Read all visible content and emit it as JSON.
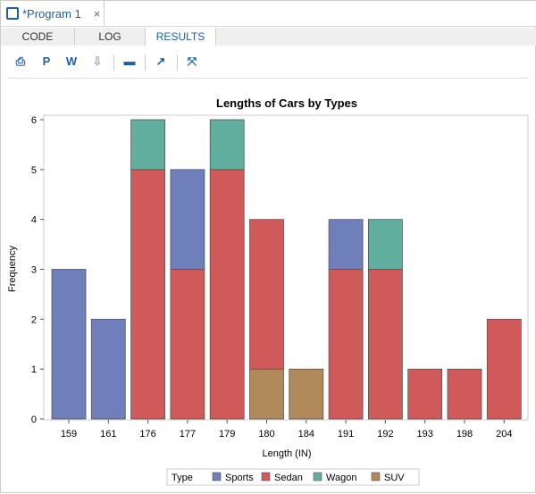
{
  "tab": {
    "title": "*Program 1",
    "close": "×",
    "icon": "program-icon"
  },
  "subtabs": [
    "CODE",
    "LOG",
    "RESULTS"
  ],
  "toolbar": [
    {
      "icon": "html-download-icon",
      "glyph": "⎙"
    },
    {
      "icon": "pdf-download-icon",
      "glyph": "P"
    },
    {
      "icon": "word-download-icon",
      "glyph": "W"
    },
    {
      "icon": "download-icon",
      "glyph": "⇩"
    },
    {
      "icon": "print-icon",
      "glyph": "▬"
    },
    {
      "icon": "expand-icon",
      "glyph": "↗"
    },
    {
      "icon": "collapse-icon",
      "glyph": "⤧"
    }
  ],
  "chart_data": {
    "type": "bar",
    "stacked": true,
    "title": "Lengths of Cars by Types",
    "xlabel": "Length (IN)",
    "ylabel": "Frequency",
    "categories": [
      "159",
      "161",
      "176",
      "177",
      "179",
      "180",
      "184",
      "191",
      "192",
      "193",
      "198",
      "204"
    ],
    "ylim": [
      0,
      6
    ],
    "yticks": [
      "0",
      "1",
      "2",
      "3",
      "4",
      "5",
      "6"
    ],
    "legend_title": "Type",
    "legend_position": "bottom",
    "series": [
      {
        "name": "Sports",
        "color": "#6f7fbb",
        "values": [
          3,
          2,
          0,
          2,
          0,
          0,
          0,
          1,
          0,
          0,
          0,
          0
        ]
      },
      {
        "name": "Sedan",
        "color": "#d05a5a",
        "values": [
          0,
          0,
          5,
          3,
          5,
          3,
          0,
          3,
          3,
          1,
          1,
          2
        ]
      },
      {
        "name": "Wagon",
        "color": "#5fae9e",
        "values": [
          0,
          0,
          1,
          0,
          1,
          0,
          0,
          0,
          1,
          0,
          0,
          0
        ]
      },
      {
        "name": "SUV",
        "color": "#b08a5a",
        "values": [
          0,
          0,
          0,
          0,
          0,
          1,
          1,
          0,
          0,
          0,
          0,
          0
        ]
      }
    ],
    "stack_order": [
      "SUV",
      "Sedan",
      "Sports",
      "Wagon"
    ]
  }
}
